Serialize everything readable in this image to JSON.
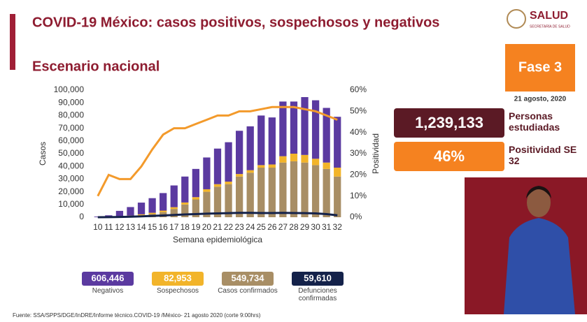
{
  "header": {
    "title": "COVID-19 México: casos positivos, sospechosos y negativos",
    "subtitle": "Escenario nacional",
    "logo": "SALUD",
    "logo_sub": "SECRETARÍA DE SALUD",
    "phase": "Fase 3",
    "date": "21 agosto, 2020"
  },
  "stats": [
    {
      "value": "1,239,133",
      "label": "Personas estudiadas"
    },
    {
      "value": "46%",
      "label": "Positividad SE 32"
    }
  ],
  "summary": [
    {
      "value": "606,446",
      "label": "Negativos"
    },
    {
      "value": "82,953",
      "label": "Sospechosos"
    },
    {
      "value": "549,734",
      "label": "Casos confirmados"
    },
    {
      "value": "59,610",
      "label": "Defunciones confirmadas"
    }
  ],
  "footer": "Fuente: SSA/SPPS/DGE/InDRE/Informe técnico.COVID-19 /México- 21 agosto 2020 (corte 9:00hrs)",
  "chart_data": {
    "type": "bar",
    "stacked": true,
    "x_label": "Semana epidemiológica",
    "y_label": "Casos",
    "y2_label": "Positividad",
    "categories": [
      "10",
      "11",
      "12",
      "13",
      "14",
      "15",
      "16",
      "17",
      "18",
      "19",
      "20",
      "21",
      "22",
      "23",
      "24",
      "25",
      "26",
      "27",
      "28",
      "29",
      "30",
      "31",
      "32"
    ],
    "ylim": [
      0,
      100000
    ],
    "yticks": [
      0,
      {
        "value": 10000,
        "label": "10,000"
      },
      {
        "value": 20000,
        "label": "20,000"
      },
      {
        "value": 30000,
        "label": "30,000"
      },
      {
        "value": 40000,
        "label": "40,000"
      },
      {
        "value": 50000,
        "label": "50,000"
      },
      {
        "value": 60000,
        "label": "60,000"
      },
      {
        "value": 70000,
        "label": "70,000"
      },
      {
        "value": 80000,
        "label": "80,000"
      },
      {
        "value": 90000,
        "label": "90,000"
      },
      {
        "value": 100000,
        "label": "100,000"
      }
    ],
    "y2lim": [
      0,
      60
    ],
    "y2ticks": [
      {
        "value": 0,
        "label": "0%"
      },
      {
        "value": 10,
        "label": "10%"
      },
      {
        "value": 20,
        "label": "20%"
      },
      {
        "value": 30,
        "label": "30%"
      },
      {
        "value": 40,
        "label": "40%"
      },
      {
        "value": 50,
        "label": "50%"
      },
      {
        "value": 60,
        "label": "60%"
      }
    ],
    "series": [
      {
        "name": "Casos confirmados",
        "type": "bar",
        "color": "#a88e65",
        "values": [
          0,
          100,
          400,
          800,
          1500,
          2500,
          4000,
          6500,
          10000,
          14000,
          20000,
          24000,
          26000,
          32000,
          35000,
          39000,
          39000,
          43000,
          44000,
          43000,
          41000,
          38000,
          32000
        ]
      },
      {
        "name": "Sospechosos",
        "type": "bar",
        "color": "#f2b42a",
        "values": [
          0,
          100,
          300,
          500,
          800,
          1000,
          1200,
          1400,
          1600,
          1800,
          2000,
          2000,
          2000,
          2000,
          2000,
          2000,
          2500,
          5000,
          6000,
          6000,
          5000,
          5000,
          7000
        ]
      },
      {
        "name": "Negativos",
        "type": "bar",
        "color": "#5b3aa0",
        "values": [
          500,
          1300,
          4300,
          6700,
          9200,
          11500,
          13800,
          17100,
          20400,
          22200,
          25000,
          28000,
          31000,
          34000,
          34500,
          39000,
          37000,
          43000,
          41000,
          45500,
          46000,
          43000,
          40000
        ]
      },
      {
        "name": "Positividad",
        "type": "line",
        "axis": "y2",
        "color": "#f39a2b",
        "values": [
          10,
          20,
          18,
          18,
          24,
          32,
          39,
          42,
          42,
          44,
          46,
          48,
          48,
          50,
          50,
          51,
          52,
          52,
          52,
          51,
          50,
          48,
          46
        ]
      },
      {
        "name": "Defunciones",
        "type": "line",
        "color": "#14224a",
        "values": [
          0,
          50,
          200,
          400,
          700,
          1000,
          1400,
          1800,
          2200,
          2500,
          2800,
          3000,
          3200,
          3400,
          3400,
          3300,
          3300,
          3400,
          3300,
          3200,
          3000,
          2500,
          1500
        ]
      }
    ]
  }
}
